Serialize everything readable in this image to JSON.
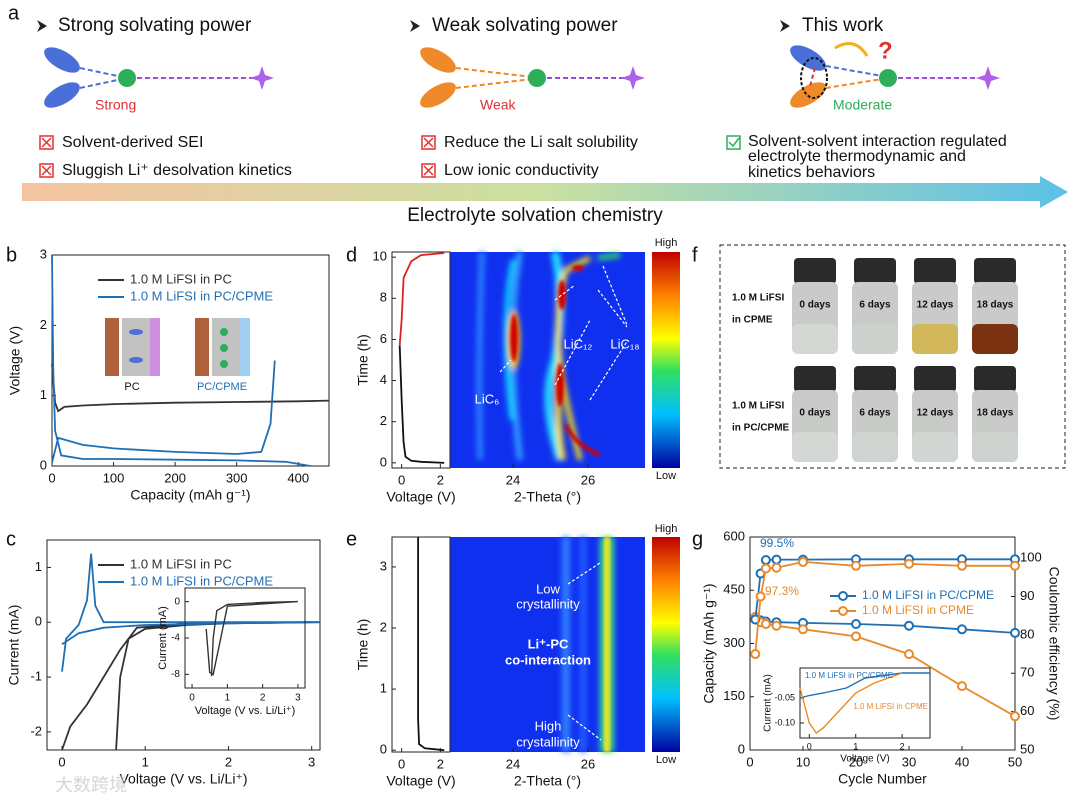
{
  "figure_a": {
    "label": "a",
    "columns": [
      {
        "heading": "Strong solvating power",
        "bond": "Strong",
        "points": [
          "Solvent-derived SEI",
          "Sluggish Li⁺ desolvation kinetics"
        ]
      },
      {
        "heading": "Weak solvating power",
        "bond": "Weak",
        "points": [
          "Reduce the Li salt solubility",
          "Low ionic conductivity"
        ]
      },
      {
        "heading": "This work",
        "bond": "Moderate",
        "points": [
          "Solvent-solvent interaction regulated",
          "electrolyte thermodynamic and",
          "kinetics behaviors"
        ]
      }
    ],
    "arrow_label": "Electrolyte solvation chemistry"
  },
  "panels": {
    "b": {
      "label": "b",
      "xlabel": "Capacity (mAh g⁻¹)",
      "ylabel": "Voltage (V)",
      "xlim": [
        0,
        450
      ],
      "ylim": [
        0,
        3
      ],
      "xticks": [
        0,
        100,
        200,
        300,
        400
      ],
      "yticks": [
        0,
        1,
        2,
        3
      ],
      "series": [
        {
          "name": "1.0 M LiFSI in PC",
          "color": "#333333",
          "x": [
            0,
            5,
            10,
            20,
            50,
            100,
            200,
            300,
            400,
            450
          ],
          "values": [
            1.45,
            0.9,
            0.78,
            0.84,
            0.86,
            0.88,
            0.9,
            0.91,
            0.92,
            0.93
          ]
        },
        {
          "name": "1.0 M LiFSI in PC/CPME",
          "color": "#1f6fb4",
          "x": [
            0,
            2,
            5,
            15,
            50,
            100,
            200,
            300,
            380,
            420,
            null,
            0,
            10,
            50,
            100,
            200,
            300,
            340,
            355,
            362
          ],
          "values": [
            3,
            1.4,
            0.5,
            0.15,
            0.1,
            0.1,
            0.09,
            0.08,
            0.06,
            0,
            null,
            0.05,
            0.4,
            0.3,
            0.25,
            0.2,
            0.17,
            0.2,
            0.6,
            1.5
          ]
        }
      ],
      "inset_labels": [
        "PC",
        "PC/CPME"
      ]
    },
    "c": {
      "label": "c",
      "xlabel": "Voltage (V vs. Li/Li⁺)",
      "ylabel": "Current (mA)",
      "xlim": [
        -0.18,
        3.1
      ],
      "ylim": [
        -2.33,
        1.5
      ],
      "xticks": [
        0,
        1,
        2,
        3
      ],
      "yticks": [
        -2,
        -1,
        0,
        1
      ],
      "series": [
        {
          "name": "1.0 M LiFSI in PC",
          "color": "#333333",
          "x": [
            0.65,
            0.7,
            0.8,
            1,
            1.5,
            2,
            2.5,
            3.1,
            null,
            0,
            0.1,
            0.3,
            0.5,
            0.7,
            0.9,
            1.5,
            3
          ],
          "values": [
            -2.33,
            -1,
            -0.3,
            -0.12,
            -0.05,
            -0.02,
            -0.01,
            0,
            null,
            -2.33,
            -1.9,
            -1.5,
            -1,
            -0.5,
            -0.1,
            -0.02,
            0
          ]
        },
        {
          "name": "1.0 M LiFSI in PC/CPME",
          "color": "#1f6fb4",
          "x": [
            0,
            0.05,
            0.2,
            0.3,
            0.35,
            0.4,
            0.5,
            1,
            2,
            3.1,
            null,
            0,
            0.2,
            0.5,
            1,
            2,
            3
          ],
          "values": [
            -0.9,
            -0.3,
            -0.05,
            0.4,
            1.25,
            0.3,
            0,
            0,
            0,
            0,
            null,
            -0.4,
            -0.2,
            -0.1,
            -0.05,
            -0.02,
            0
          ]
        }
      ],
      "inset": {
        "xlabel": "Voltage (V vs. Li/Li⁺)",
        "ylabel": "Current (mA)",
        "xlim": [
          -0.2,
          3.2
        ],
        "ylim": [
          -9.5,
          1.5
        ],
        "xticks": [
          0,
          1,
          2,
          3
        ],
        "yticks": [
          -8,
          -4,
          0
        ],
        "series": [
          {
            "color": "#333333",
            "x": [
              0.55,
              0.6,
              0.7,
              1,
              2,
              3,
              null,
              0.4,
              0.5,
              0.6,
              1,
              3
            ],
            "values": [
              -8.2,
              -4,
              -1,
              -0.3,
              -0.1,
              0,
              null,
              -3,
              -7.8,
              -8,
              -0.5,
              0
            ]
          }
        ]
      }
    },
    "d": {
      "label": "d",
      "voltage": {
        "xlabel": "Voltage (V)",
        "ylabel": "Time (h)",
        "xlim": [
          -0.5,
          2.5
        ],
        "ylim": [
          -0.25,
          10.25
        ],
        "xticks": [
          0,
          2
        ],
        "yticks": [
          0,
          2,
          4,
          6,
          8,
          10
        ],
        "series": [
          {
            "color": "#111111",
            "x": [
              2.2,
              1,
              0.5,
              0.2,
              0.1,
              0,
              -0.1
            ],
            "values": [
              0,
              0.05,
              0.1,
              0.3,
              1,
              3,
              5.7
            ]
          },
          {
            "color": "#e02020",
            "x": [
              -0.1,
              0,
              0.1,
              0.5,
              1,
              2.2
            ],
            "values": [
              5.7,
              7,
              9,
              9.8,
              10.1,
              10.2
            ]
          }
        ]
      },
      "heatmap": {
        "xlabel": "2-Theta (°)",
        "xlim": [
          22.32,
          27.52
        ],
        "xticks": [
          24,
          26
        ]
      },
      "colorbar": [
        "High",
        "Low"
      ],
      "annotations": [
        "LiC₆",
        "LiC₁₂",
        "LiC₁₈"
      ]
    },
    "e": {
      "label": "e",
      "voltage": {
        "xlabel": "Voltage (V)",
        "ylabel": "Time (h)",
        "xlim": [
          -0.5,
          2.5
        ],
        "ylim": [
          -0.03,
          3.49
        ],
        "xticks": [
          0,
          2
        ],
        "yticks": [
          0,
          1,
          2,
          3
        ],
        "series": [
          {
            "color": "#111111",
            "x": [
              2.2,
              1.2,
              0.9,
              0.85,
              0.85
            ],
            "values": [
              0,
              0.03,
              0.1,
              0.5,
              3.49
            ]
          }
        ]
      },
      "heatmap": {
        "xlabel": "2-Theta (°)",
        "xlim": [
          22.32,
          27.52
        ],
        "xticks": [
          24,
          26
        ]
      },
      "colorbar": [
        "High",
        "Low"
      ],
      "annotations": [
        [
          "Low",
          "crystallinity"
        ],
        [
          "Li⁺-PC",
          "co-interaction"
        ],
        [
          "High",
          "crystallinity"
        ]
      ]
    },
    "f": {
      "label": "f",
      "rows": [
        {
          "label": [
            "1.0 M LiFSI",
            "in CPME"
          ],
          "days": [
            "0 days",
            "6 days",
            "12 days",
            "18 days"
          ],
          "liquid_colors": [
            "#d4d8d4",
            "#cdd1cd",
            "#d2b85a",
            "#7a3210"
          ]
        },
        {
          "label": [
            "1.0 M LiFSI",
            "in PC/CPME"
          ],
          "days": [
            "0 days",
            "6 days",
            "12 days",
            "18 days"
          ],
          "liquid_colors": [
            "#d4d8d4",
            "#d0d4d0",
            "#d2d6d2",
            "#cfd3cf"
          ]
        }
      ]
    },
    "g": {
      "label": "g",
      "xlabel": "Cycle Number",
      "ylabel": "Capacity (mAh g⁻¹)",
      "y2label": "Coulombic efficiency (%)",
      "xlim": [
        0,
        50
      ],
      "ylim": [
        0,
        600
      ],
      "y2lim": [
        50,
        105.5
      ],
      "xticks": [
        0,
        10,
        20,
        30,
        40,
        50
      ],
      "yticks": [
        0,
        150,
        300,
        450,
        600
      ],
      "y2ticks": [
        50,
        60,
        70,
        80,
        90,
        100
      ],
      "series": [
        {
          "name": "1.0 M LiFSI in PC/CPME",
          "color": "#1f6fb4",
          "x": [
            1,
            2,
            3,
            5,
            10,
            20,
            30,
            40,
            50
          ],
          "values": [
            370,
            365,
            362,
            360,
            358,
            355,
            350,
            340,
            330
          ]
        },
        {
          "name": "1.0 M LiFSI in CPME",
          "color": "#e8892a",
          "x": [
            1,
            2,
            3,
            5,
            10,
            20,
            30,
            40,
            50
          ],
          "values": [
            375,
            360,
            355,
            350,
            340,
            320,
            270,
            180,
            95
          ]
        },
        {
          "color": "#1f6fb4",
          "axis": "y2",
          "x": [
            1,
            2,
            3,
            5,
            10,
            20,
            30,
            40,
            50
          ],
          "values": [
            84,
            96,
            99.5,
            99.6,
            99.6,
            99.7,
            99.7,
            99.7,
            99.7
          ]
        },
        {
          "color": "#e8892a",
          "axis": "y2",
          "x": [
            1,
            2,
            3,
            5,
            10,
            20,
            30,
            40,
            50
          ],
          "values": [
            75,
            90,
            97.3,
            97.5,
            99,
            98,
            98.5,
            98,
            98
          ]
        }
      ],
      "value_labels": [
        "99.5%",
        "97.3%"
      ],
      "inset": {
        "xlabel": "Voltage (V)",
        "ylabel": "Current (mA)",
        "xlim": [
          -0.2,
          2.6
        ],
        "ylim": [
          -0.13,
          0.01
        ],
        "xticks": [
          0,
          1,
          2
        ],
        "yticks": [
          -0.05,
          {
            "value": -0.1,
            "label": "-0.10"
          }
        ],
        "series": [
          {
            "name": "1.0 M LiFSI in PC/CPME",
            "color": "#1f6fb4",
            "x": [
              -0.2,
              0,
              0.3,
              0.8,
              1.2,
              2,
              2.6
            ],
            "values": [
              -0.05,
              -0.045,
              -0.04,
              -0.03,
              -0.01,
              0,
              0
            ]
          },
          {
            "name": "1.0 M LiFSI in CPME",
            "color": "#e8892a",
            "x": [
              -0.2,
              0,
              0.15,
              0.3,
              0.6,
              1,
              1.4,
              2
            ],
            "values": [
              -0.03,
              -0.1,
              -0.12,
              -0.11,
              -0.08,
              -0.04,
              -0.02,
              0
            ]
          }
        ]
      }
    }
  },
  "watermark": "大数跨境"
}
